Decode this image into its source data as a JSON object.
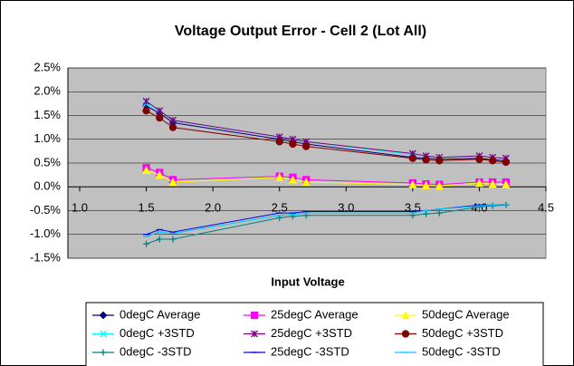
{
  "chart_data": {
    "type": "line",
    "title": "Voltage Output Error - Cell 2 (Lot All)",
    "x_label": "Input Voltage",
    "x": [
      1.5,
      1.6,
      1.7,
      2.5,
      2.6,
      2.7,
      3.5,
      3.6,
      3.7,
      4.0,
      4.1,
      4.2
    ],
    "xlim": [
      1.0,
      4.5
    ],
    "xticks": [
      {
        "value": 1.0,
        "label": "1.0"
      },
      {
        "value": 1.5,
        "label": "1.5"
      },
      {
        "value": 2.0,
        "label": "2.0"
      },
      {
        "value": 2.5,
        "label": "2.5"
      },
      {
        "value": 3.0,
        "label": "3.0"
      },
      {
        "value": 3.5,
        "label": "3.5"
      },
      {
        "value": 4.0,
        "label": "4.0"
      },
      {
        "value": 4.5,
        "label": "4.5"
      }
    ],
    "ylim": [
      -1.5,
      2.5
    ],
    "yticks": [
      {
        "value": -1.5,
        "label": "-1.5%"
      },
      {
        "value": -1.0,
        "label": "-1.0%"
      },
      {
        "value": -0.5,
        "label": "-0.5%"
      },
      {
        "value": 0.0,
        "label": "0.0%"
      },
      {
        "value": 0.5,
        "label": "0.5%"
      },
      {
        "value": 1.0,
        "label": "1.0%"
      },
      {
        "value": 1.5,
        "label": "1.5%"
      },
      {
        "value": 2.0,
        "label": "2.0%"
      },
      {
        "value": 2.5,
        "label": "2.5%"
      }
    ],
    "grid": true,
    "legend": "bottom",
    "series": [
      {
        "name": "0degC Average",
        "color": "#000080",
        "marker": "diamond",
        "values": [
          1.7,
          1.55,
          1.35,
          1.0,
          0.95,
          0.9,
          0.62,
          0.6,
          0.58,
          0.6,
          0.57,
          0.55
        ]
      },
      {
        "name": "25degC Average",
        "color": "#ff00ff",
        "marker": "square",
        "values": [
          0.4,
          0.3,
          0.15,
          0.22,
          0.2,
          0.15,
          0.08,
          0.06,
          0.05,
          0.1,
          0.1,
          0.1
        ]
      },
      {
        "name": "50degC Average",
        "color": "#ffff00",
        "marker": "triangle",
        "values": [
          0.35,
          0.25,
          0.1,
          0.2,
          0.15,
          0.1,
          0.05,
          0.03,
          0.02,
          0.08,
          0.06,
          0.05
        ]
      },
      {
        "name": "0degC +3STD",
        "color": "#00ffff",
        "marker": "x",
        "values": [
          1.75,
          1.6,
          1.4,
          1.05,
          1.0,
          0.95,
          0.68,
          0.65,
          0.62,
          0.65,
          0.62,
          0.6
        ]
      },
      {
        "name": "25degC +3STD",
        "color": "#800080",
        "marker": "star",
        "values": [
          1.8,
          1.6,
          1.4,
          1.05,
          1.0,
          0.95,
          0.7,
          0.65,
          0.62,
          0.65,
          0.62,
          0.6
        ]
      },
      {
        "name": "50degC +3STD",
        "color": "#800000",
        "marker": "circle",
        "values": [
          1.6,
          1.45,
          1.25,
          0.95,
          0.9,
          0.85,
          0.6,
          0.57,
          0.55,
          0.58,
          0.55,
          0.52
        ]
      },
      {
        "name": "0degC -3STD",
        "color": "#008080",
        "marker": "plus",
        "values": [
          -1.2,
          -1.1,
          -1.1,
          -0.65,
          -0.62,
          -0.6,
          -0.6,
          -0.57,
          -0.55,
          -0.42,
          -0.4,
          -0.38
        ]
      },
      {
        "name": "25degC -3STD",
        "color": "#0000ff",
        "marker": "dash",
        "values": [
          -1.0,
          -0.9,
          -0.95,
          -0.55,
          -0.55,
          -0.52,
          -0.52,
          -0.5,
          -0.47,
          -0.38,
          -0.38,
          -0.37
        ]
      },
      {
        "name": "50degC -3STD",
        "color": "#00ccff",
        "marker": "dash",
        "values": [
          -1.05,
          -0.95,
          -0.98,
          -0.6,
          -0.58,
          -0.55,
          -0.55,
          -0.5,
          -0.47,
          -0.4,
          -0.38,
          -0.37
        ]
      }
    ]
  }
}
